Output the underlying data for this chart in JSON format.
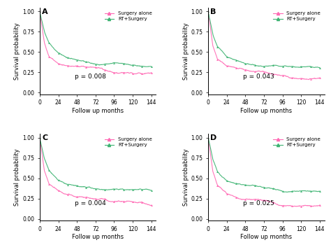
{
  "panels": [
    {
      "label": "A",
      "p_value": "p = 0.008"
    },
    {
      "label": "B",
      "p_value": "p = 0.043"
    },
    {
      "label": "C",
      "p_value": "p = 0.004"
    },
    {
      "label": "D",
      "p_value": "p = 0.025"
    }
  ],
  "color_surgery": "#FF69B4",
  "color_rt": "#3CB371",
  "ylabel": "Survival probability",
  "xlabel": "Follow up months",
  "yticks": [
    0.0,
    0.25,
    0.5,
    0.75,
    1.0
  ],
  "xticks": [
    0,
    24,
    48,
    72,
    96,
    120,
    144
  ],
  "xlim": [
    0,
    150
  ],
  "ylim": [
    -0.02,
    1.05
  ],
  "legend_surgery": "Surgery alone",
  "legend_rt": "RT+Surgery",
  "panel_params": [
    {
      "s_pts": [
        0,
        6,
        12,
        24,
        36,
        48,
        72,
        96,
        120,
        144
      ],
      "s_surv": [
        1.0,
        0.62,
        0.45,
        0.35,
        0.32,
        0.3,
        0.28,
        0.22,
        0.2,
        0.19
      ],
      "rt_pts": [
        0,
        6,
        12,
        24,
        36,
        48,
        72,
        96,
        120,
        144
      ],
      "rt_surv": [
        1.0,
        0.76,
        0.62,
        0.5,
        0.44,
        0.4,
        0.37,
        0.36,
        0.35,
        0.35
      ]
    },
    {
      "s_pts": [
        0,
        6,
        12,
        24,
        36,
        48,
        72,
        96,
        120,
        144
      ],
      "s_surv": [
        1.0,
        0.58,
        0.42,
        0.33,
        0.3,
        0.28,
        0.26,
        0.22,
        0.2,
        0.19
      ],
      "rt_pts": [
        0,
        6,
        12,
        24,
        36,
        48,
        72,
        96,
        120,
        144
      ],
      "rt_surv": [
        1.0,
        0.72,
        0.58,
        0.46,
        0.42,
        0.4,
        0.38,
        0.37,
        0.36,
        0.35
      ]
    },
    {
      "s_pts": [
        0,
        6,
        12,
        24,
        36,
        48,
        72,
        96,
        120,
        144
      ],
      "s_surv": [
        1.0,
        0.6,
        0.43,
        0.33,
        0.3,
        0.27,
        0.25,
        0.21,
        0.19,
        0.18
      ],
      "rt_pts": [
        0,
        6,
        12,
        24,
        36,
        48,
        72,
        96,
        120,
        144
      ],
      "rt_surv": [
        1.0,
        0.74,
        0.6,
        0.48,
        0.42,
        0.38,
        0.34,
        0.32,
        0.31,
        0.31
      ]
    },
    {
      "s_pts": [
        0,
        6,
        12,
        24,
        36,
        48,
        72,
        96,
        120,
        144
      ],
      "s_surv": [
        1.0,
        0.59,
        0.42,
        0.33,
        0.3,
        0.27,
        0.26,
        0.21,
        0.19,
        0.18
      ],
      "rt_pts": [
        0,
        6,
        12,
        24,
        36,
        48,
        72,
        96,
        120,
        144
      ],
      "rt_surv": [
        1.0,
        0.72,
        0.57,
        0.46,
        0.42,
        0.39,
        0.36,
        0.33,
        0.32,
        0.32
      ]
    }
  ]
}
